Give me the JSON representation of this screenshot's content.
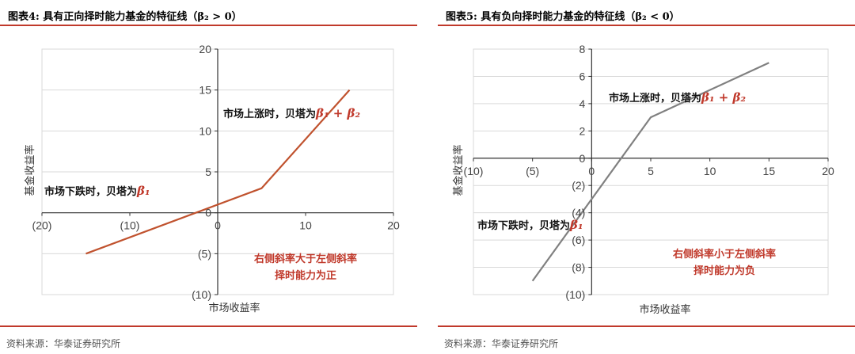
{
  "charts": [
    {
      "title": "图表4:   具有正向择时能力基金的特征线（β₂ > 0）",
      "source": "资料来源：华泰证券研究所",
      "annotations": {
        "up_text": "市场上涨时，贝塔为",
        "up_beta": "β₁ + β₂",
        "down_text": "市场下跌时，贝塔为",
        "down_beta": "β₁",
        "note_line1": "右侧斜率大于左侧斜率",
        "note_line2": "择时能力为正"
      },
      "colors": {
        "line": "#c0522e"
      }
    },
    {
      "title": "图表5:   具有负向择时能力基金的特征线（β₂ < 0）",
      "source": "资料来源：华泰证券研究所",
      "annotations": {
        "up_text": "市场上涨时，贝塔为",
        "up_beta": "β₁ + β₂",
        "down_text": "市场下跌时，贝塔为",
        "down_beta": "β₁",
        "note_line1": "右侧斜率小于左侧斜率",
        "note_line2": "择时能力为负"
      },
      "colors": {
        "line": "#808080"
      }
    }
  ],
  "chart_data": [
    {
      "type": "line",
      "title": "具有正向择时能力基金的特征线（β₂ > 0）",
      "xlabel": "市场收益率",
      "ylabel": "基金收益率",
      "xlim": [
        -20,
        20
      ],
      "ylim": [
        -10,
        20
      ],
      "xticks": [
        -20,
        -10,
        0,
        10,
        20
      ],
      "xtick_labels": [
        "(20)",
        "(10)",
        "0",
        "10",
        "20"
      ],
      "yticks": [
        -10,
        -5,
        0,
        5,
        10,
        15,
        20
      ],
      "ytick_labels": [
        "(10)",
        "(5)",
        "0",
        "5",
        "10",
        "15",
        "20"
      ],
      "grid": true,
      "x": [
        -15,
        5,
        15
      ],
      "y": [
        -5,
        3,
        15
      ]
    },
    {
      "type": "line",
      "title": "具有负向择时能力基金的特征线（β₂ < 0）",
      "xlabel": "市场收益率",
      "ylabel": "基金收益率",
      "xlim": [
        -10,
        20
      ],
      "ylim": [
        -10,
        8
      ],
      "xticks": [
        -10,
        -5,
        0,
        5,
        10,
        15,
        20
      ],
      "xtick_labels": [
        "(10)",
        "(5)",
        "0",
        "5",
        "10",
        "15",
        "20"
      ],
      "yticks": [
        -10,
        -8,
        -6,
        -4,
        -2,
        0,
        2,
        4,
        6,
        8
      ],
      "ytick_labels": [
        "(10)",
        "(8)",
        "(6)",
        "(4)",
        "(2)",
        "0",
        "2",
        "4",
        "6",
        "8"
      ],
      "grid": true,
      "x": [
        -5,
        5,
        15
      ],
      "y": [
        -9,
        3,
        7
      ]
    }
  ]
}
